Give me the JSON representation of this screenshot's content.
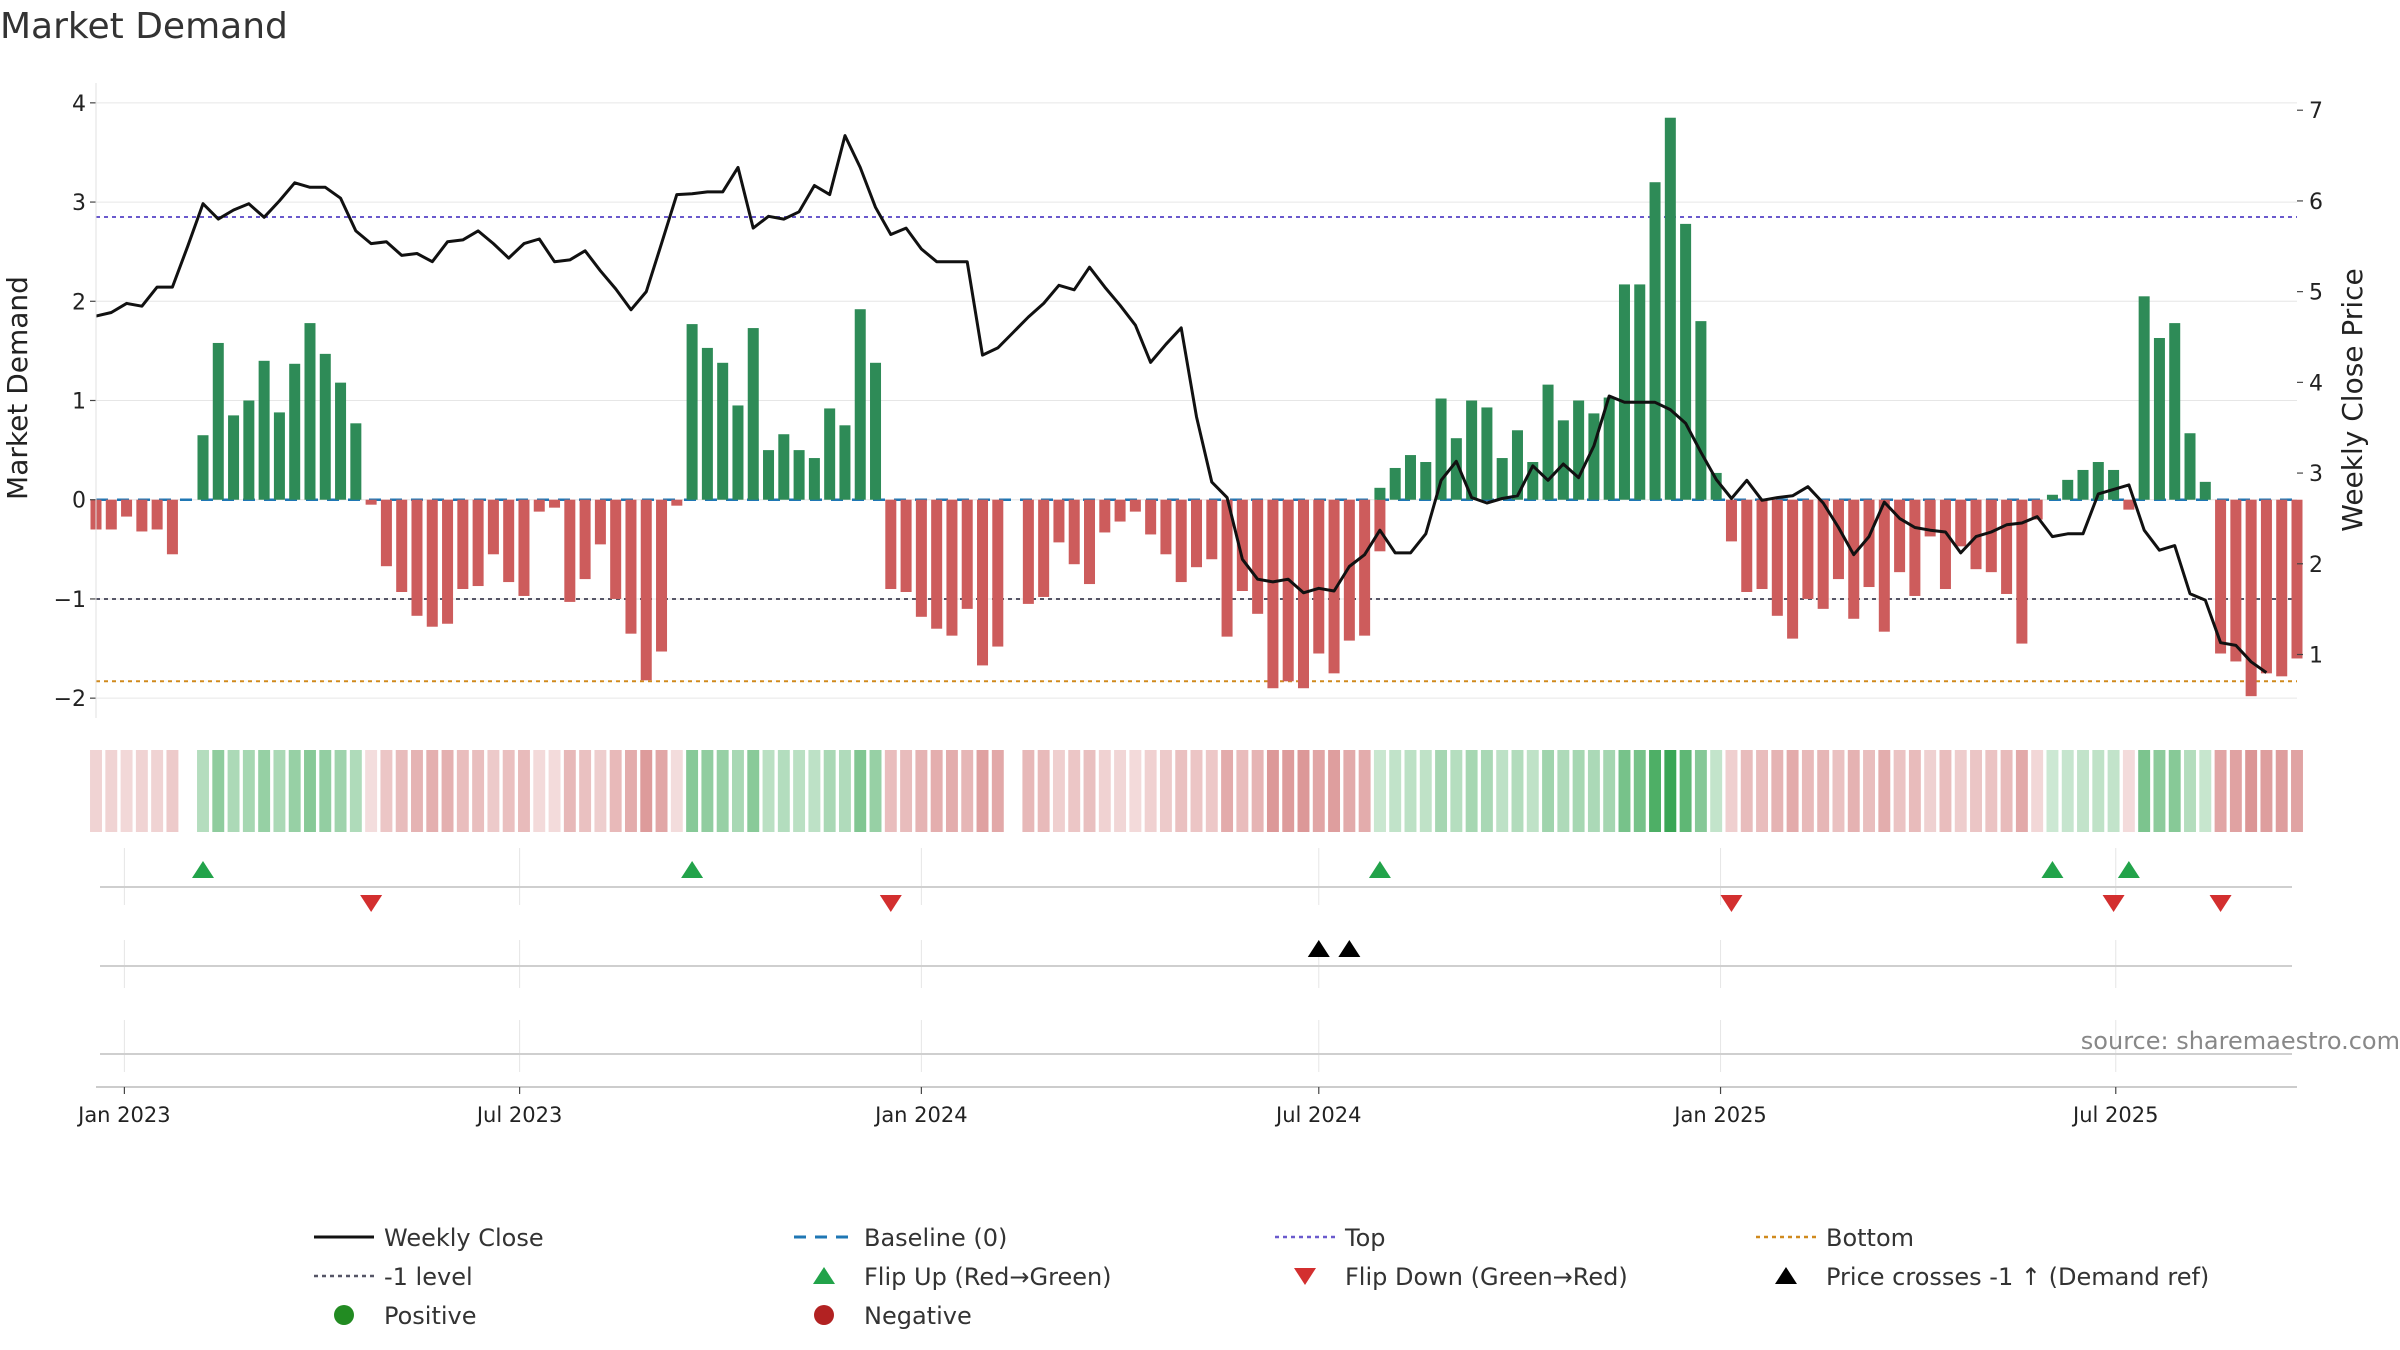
{
  "chart_data": {
    "type": "bar+line",
    "title": "Market Demand",
    "ylabel_left": "Market Demand",
    "ylabel_right": "Weekly Close Price",
    "ylim_left": [
      -2.2,
      4.2
    ],
    "ylim_right": [
      0.3,
      7.3
    ],
    "yticks_left": [
      -2,
      -1,
      0,
      1,
      2,
      3,
      4
    ],
    "yticks_right": [
      1,
      2,
      3,
      4,
      5,
      6,
      7
    ],
    "yticklabels_left": [
      "−2",
      "−1",
      "0",
      "1",
      "2",
      "3",
      "4"
    ],
    "yticklabels_right": [
      "1",
      "2",
      "3",
      "4",
      "5",
      "6",
      "7"
    ],
    "x_start": "2022-12-19",
    "x_end": "2025-09-22",
    "date_ticks": [
      {
        "date": "2023-01-01",
        "label": "Jan 2023"
      },
      {
        "date": "2023-07-01",
        "label": "Jul 2023"
      },
      {
        "date": "2024-01-01",
        "label": "Jan 2024"
      },
      {
        "date": "2024-07-01",
        "label": "Jul 2024"
      },
      {
        "date": "2025-01-01",
        "label": "Jan 2025"
      },
      {
        "date": "2025-07-01",
        "label": "Jul 2025"
      }
    ],
    "reference_lines": {
      "baseline": 0,
      "top": 2.85,
      "minus_one": -1,
      "bottom": -1.83
    },
    "demand_segments": [
      {
        "start": "2022-12-19",
        "values": [
          -0.3,
          -0.3,
          -0.17,
          -0.32,
          -0.3,
          -0.55
        ]
      },
      {
        "start": "2023-02-06",
        "values": [
          0.65,
          1.58,
          0.85,
          1.0,
          1.4,
          0.88,
          1.37,
          1.78,
          1.47,
          1.18,
          0.77
        ]
      },
      {
        "start": "2023-04-24",
        "values": [
          -0.05,
          -0.67,
          -0.93,
          -1.17,
          -1.28,
          -1.25,
          -0.9,
          -0.87,
          -0.55,
          -0.83,
          -0.97,
          -0.12,
          -0.08,
          -1.03,
          -0.8,
          -0.45,
          -1.0,
          -1.35,
          -1.82,
          -1.53,
          -0.06
        ]
      },
      {
        "start": "2023-09-18",
        "values": [
          1.77,
          1.53,
          1.38,
          0.95,
          1.73,
          0.5,
          0.66,
          0.5,
          0.42,
          0.92,
          0.75,
          1.92,
          1.38
        ]
      },
      {
        "start": "2023-12-18",
        "values": [
          -0.9,
          -0.93,
          -1.18,
          -1.3,
          -1.37,
          -1.1,
          -1.67,
          -1.48
        ]
      },
      {
        "start": "2024-02-19",
        "values": [
          -1.05,
          -0.98,
          -0.43,
          -0.65,
          -0.85,
          -0.33,
          -0.22,
          -0.12,
          -0.35,
          -0.55,
          -0.83,
          -0.68,
          -0.6,
          -1.38,
          -0.92,
          -1.15,
          -1.9,
          -1.83,
          -1.9,
          -1.55,
          -1.75,
          -1.42,
          -1.37,
          -0.52
        ]
      },
      {
        "start": "2024-07-29",
        "values": [
          0.12,
          0.32,
          0.45,
          0.38,
          1.02,
          0.62,
          1.0,
          0.93,
          0.42,
          0.7,
          0.38,
          1.16,
          0.8,
          1.0,
          0.87,
          1.03,
          2.17,
          2.17,
          3.2,
          3.85,
          2.78,
          1.8,
          0.27
        ]
      },
      {
        "start": "2025-01-06",
        "values": [
          -0.42,
          -0.93,
          -0.9,
          -1.17,
          -1.4,
          -1.0,
          -1.1,
          -0.8,
          -1.2,
          -0.88,
          -1.33,
          -0.73,
          -0.97,
          -0.37,
          -0.9,
          -0.47,
          -0.7,
          -0.73,
          -0.95,
          -1.45,
          -0.2
        ]
      },
      {
        "start": "2025-06-02",
        "values": [
          0.05,
          0.2,
          0.3,
          0.38,
          0.3,
          -0.1,
          2.05,
          1.63,
          1.78,
          0.67,
          0.18
        ]
      },
      {
        "start": "2025-08-18",
        "values": [
          -1.55,
          -1.63,
          -1.98,
          -1.75,
          -1.78,
          -1.6
        ]
      }
    ],
    "weekly_close": {
      "start": "2022-12-19",
      "values": [
        4.73,
        4.77,
        4.87,
        4.84,
        5.05,
        5.05,
        5.5,
        5.97,
        5.8,
        5.9,
        5.97,
        5.82,
        6.0,
        6.2,
        6.15,
        6.15,
        6.03,
        5.67,
        5.53,
        5.55,
        5.4,
        5.42,
        5.33,
        5.55,
        5.57,
        5.67,
        5.53,
        5.37,
        5.53,
        5.58,
        5.33,
        5.35,
        5.45,
        5.23,
        5.03,
        4.8,
        5.0,
        5.53,
        6.07,
        6.08,
        6.1,
        6.1,
        6.37,
        5.7,
        5.83,
        5.8,
        5.88,
        6.17,
        6.07,
        6.72,
        6.37,
        5.93,
        5.63,
        5.7,
        5.47,
        5.33,
        5.33,
        5.33,
        4.3,
        4.38,
        4.55,
        4.72,
        4.87,
        5.07,
        5.02,
        5.27,
        5.05,
        4.85,
        4.63,
        4.22,
        4.42,
        4.6,
        3.62,
        2.9,
        2.73,
        2.05,
        1.83,
        1.8,
        1.83,
        1.68,
        1.73,
        1.7,
        1.97,
        2.1,
        2.37,
        2.12,
        2.12,
        2.33,
        2.92,
        3.13,
        2.73,
        2.67,
        2.72,
        2.75,
        3.08,
        2.92,
        3.1,
        2.95,
        3.3,
        3.85,
        3.78,
        3.78,
        3.78,
        3.7,
        3.55,
        3.23,
        2.93,
        2.72,
        2.92,
        2.7,
        2.73,
        2.75,
        2.85,
        2.67,
        2.4,
        2.1,
        2.3,
        2.68,
        2.5,
        2.4,
        2.37,
        2.35,
        2.12,
        2.3,
        2.35,
        2.43,
        2.45,
        2.52,
        2.3,
        2.33,
        2.33,
        2.77,
        2.82,
        2.87,
        2.37,
        2.15,
        2.2,
        1.67,
        1.6,
        1.13,
        1.1,
        0.92,
        0.8
      ]
    },
    "flip_up_dates": [
      "2023-02-06",
      "2023-09-18",
      "2024-07-29",
      "2025-06-02",
      "2025-07-07"
    ],
    "flip_down_dates": [
      "2023-04-24",
      "2023-12-18",
      "2025-01-06",
      "2025-06-30",
      "2025-08-18"
    ],
    "price_cross_dates": [
      "2024-07-01",
      "2024-07-15"
    ],
    "legend": [
      "Weekly Close",
      "Baseline (0)",
      "Top",
      "Bottom",
      "-1 level",
      "Flip Up (Red→Green)",
      "Flip Down (Green→Red)",
      "Price crosses -1 ↑ (Demand ref)",
      "Positive",
      "Negative"
    ],
    "source": "source: sharemaestro.com"
  },
  "colors": {
    "positive_bar": "#2e8b57",
    "negative_bar": "#cd5c5c",
    "price_line": "#111111",
    "baseline": "#1f77b4",
    "top_line": "#6a5acd",
    "minus_one_line": "#555566",
    "bottom_line": "#d08a1e",
    "flip_up": "#22a34a",
    "flip_down": "#d32f2f",
    "cross_marker": "#000000",
    "positive_dot": "#228b22",
    "negative_dot": "#b22222",
    "grid": "#e6e6e6"
  }
}
